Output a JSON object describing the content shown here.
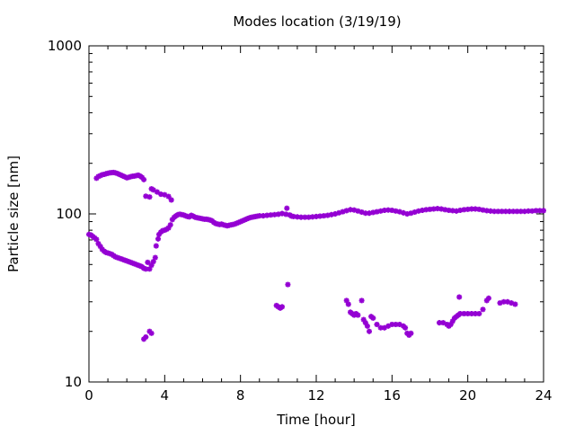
{
  "chart_data": {
    "type": "scatter",
    "title": "Modes location (3/19/19)",
    "xlabel": "Time [hour]",
    "ylabel": "Particle size [nm]",
    "xlim": [
      0,
      24
    ],
    "ylim": [
      10,
      1000
    ],
    "yscale": "log",
    "xticks": [
      "0",
      "4",
      "8",
      "12",
      "16",
      "20",
      "24"
    ],
    "yticks": [
      "10",
      "100",
      "1000"
    ],
    "grid": false,
    "legend": "none",
    "marker_color": "#9400d3",
    "series": [
      {
        "values": [
          [
            0.0,
            75.5
          ],
          [
            0.1,
            75.0
          ],
          [
            0.2,
            73.5
          ],
          [
            0.3,
            72.0
          ],
          [
            0.4,
            70.5
          ],
          [
            0.5,
            66.5
          ],
          [
            0.6,
            64.0
          ],
          [
            0.7,
            61.5
          ],
          [
            0.8,
            60.0
          ],
          [
            0.9,
            59.0
          ],
          [
            1.0,
            58.5
          ],
          [
            1.1,
            58.0
          ],
          [
            1.2,
            57.5
          ],
          [
            1.3,
            56.5
          ],
          [
            1.4,
            55.5
          ],
          [
            1.5,
            55.0
          ],
          [
            1.6,
            54.5
          ],
          [
            1.7,
            54.0
          ],
          [
            1.8,
            53.5
          ],
          [
            1.9,
            53.0
          ],
          [
            2.0,
            52.5
          ],
          [
            2.1,
            52.0
          ],
          [
            2.2,
            51.5
          ],
          [
            2.3,
            51.0
          ],
          [
            2.4,
            50.5
          ],
          [
            2.5,
            50.0
          ],
          [
            2.6,
            49.5
          ],
          [
            2.7,
            49.0
          ],
          [
            2.8,
            48.5
          ],
          [
            2.9,
            47.5
          ],
          [
            3.0,
            47.0
          ],
          [
            3.1,
            51.5
          ],
          [
            3.2,
            47.0
          ],
          [
            3.3,
            49.5
          ],
          [
            3.4,
            52.0
          ],
          [
            3.5,
            55.0
          ],
          [
            3.55,
            64.5
          ],
          [
            3.65,
            71.0
          ],
          [
            3.7,
            75.5
          ],
          [
            3.8,
            78.0
          ],
          [
            3.9,
            79.5
          ],
          [
            4.0,
            80.0
          ],
          [
            4.1,
            81.0
          ],
          [
            4.2,
            82.5
          ],
          [
            4.3,
            86.0
          ],
          [
            4.4,
            92.5
          ],
          [
            4.5,
            95.5
          ],
          [
            4.6,
            97.5
          ],
          [
            4.7,
            99.0
          ],
          [
            4.8,
            99.5
          ],
          [
            4.9,
            99.0
          ],
          [
            5.0,
            98.5
          ],
          [
            5.1,
            97.5
          ],
          [
            5.2,
            96.5
          ],
          [
            5.3,
            96.0
          ],
          [
            5.4,
            98.0
          ],
          [
            5.5,
            97.0
          ],
          [
            5.6,
            95.5
          ],
          [
            5.7,
            95.0
          ],
          [
            5.8,
            94.5
          ],
          [
            5.9,
            94.0
          ],
          [
            6.0,
            93.5
          ],
          [
            6.1,
            93.0
          ],
          [
            6.2,
            93.0
          ],
          [
            6.3,
            92.5
          ],
          [
            6.4,
            92.0
          ],
          [
            6.5,
            91.0
          ],
          [
            6.6,
            89.0
          ],
          [
            6.7,
            87.5
          ],
          [
            6.8,
            87.0
          ],
          [
            6.9,
            86.5
          ],
          [
            7.0,
            87.0
          ],
          [
            7.1,
            86.0
          ],
          [
            7.2,
            85.5
          ],
          [
            7.3,
            85.0
          ],
          [
            7.4,
            85.5
          ],
          [
            7.5,
            86.0
          ],
          [
            7.6,
            86.5
          ],
          [
            7.7,
            87.0
          ],
          [
            7.8,
            88.0
          ],
          [
            7.9,
            89.0
          ],
          [
            8.0,
            90.0
          ],
          [
            8.1,
            91.0
          ],
          [
            8.2,
            92.0
          ],
          [
            8.3,
            93.0
          ],
          [
            8.4,
            94.0
          ],
          [
            8.5,
            95.0
          ],
          [
            8.6,
            95.5
          ],
          [
            8.7,
            96.0
          ],
          [
            8.8,
            96.5
          ],
          [
            8.9,
            97.0
          ],
          [
            9.0,
            97.5
          ],
          [
            9.2,
            97.5
          ],
          [
            9.4,
            98.0
          ],
          [
            9.6,
            98.5
          ],
          [
            9.8,
            99.0
          ],
          [
            10.0,
            99.5
          ],
          [
            10.2,
            100.5
          ],
          [
            10.4,
            99.5
          ],
          [
            10.6,
            98.5
          ],
          [
            10.7,
            97.0
          ],
          [
            10.8,
            96.5
          ],
          [
            11.0,
            96.0
          ],
          [
            11.2,
            95.5
          ],
          [
            11.4,
            95.5
          ],
          [
            11.6,
            95.5
          ],
          [
            11.8,
            96.0
          ],
          [
            12.0,
            96.5
          ],
          [
            12.2,
            97.0
          ],
          [
            12.4,
            97.5
          ],
          [
            12.6,
            98.0
          ],
          [
            12.8,
            99.0
          ],
          [
            13.0,
            100.0
          ],
          [
            13.2,
            101.5
          ],
          [
            13.4,
            103.0
          ],
          [
            13.6,
            104.5
          ],
          [
            13.8,
            106.0
          ],
          [
            14.0,
            105.5
          ],
          [
            14.2,
            104.0
          ],
          [
            14.4,
            102.5
          ],
          [
            14.6,
            101.0
          ],
          [
            14.8,
            101.0
          ],
          [
            15.0,
            102.0
          ],
          [
            15.2,
            103.0
          ],
          [
            15.4,
            104.0
          ],
          [
            15.6,
            105.0
          ],
          [
            15.8,
            105.5
          ],
          [
            16.0,
            105.0
          ],
          [
            16.2,
            104.0
          ],
          [
            16.4,
            103.0
          ],
          [
            16.6,
            101.5
          ],
          [
            16.8,
            100.0
          ],
          [
            17.0,
            101.0
          ],
          [
            17.2,
            102.5
          ],
          [
            17.4,
            104.0
          ],
          [
            17.6,
            105.0
          ],
          [
            17.8,
            106.0
          ],
          [
            18.0,
            106.5
          ],
          [
            18.2,
            107.0
          ],
          [
            18.4,
            107.5
          ],
          [
            18.6,
            107.0
          ],
          [
            18.8,
            106.0
          ],
          [
            19.0,
            105.0
          ],
          [
            19.2,
            104.5
          ],
          [
            19.4,
            104.0
          ],
          [
            19.6,
            105.0
          ],
          [
            19.8,
            106.0
          ],
          [
            20.0,
            106.5
          ],
          [
            20.2,
            107.0
          ],
          [
            20.4,
            107.0
          ],
          [
            20.6,
            106.5
          ],
          [
            20.8,
            105.5
          ],
          [
            21.0,
            104.5
          ],
          [
            21.2,
            104.0
          ],
          [
            21.4,
            103.5
          ],
          [
            21.6,
            103.5
          ],
          [
            21.8,
            103.5
          ],
          [
            22.0,
            103.5
          ],
          [
            22.2,
            103.5
          ],
          [
            22.4,
            103.5
          ],
          [
            22.6,
            103.5
          ],
          [
            22.8,
            103.5
          ],
          [
            23.0,
            103.5
          ],
          [
            23.2,
            104.0
          ],
          [
            23.4,
            104.0
          ],
          [
            23.6,
            104.5
          ],
          [
            23.8,
            104.5
          ],
          [
            24.0,
            104.5
          ],
          [
            0.4,
            163.0
          ],
          [
            0.5,
            167.0
          ],
          [
            0.6,
            169.0
          ],
          [
            0.7,
            171.0
          ],
          [
            0.8,
            172.0
          ],
          [
            0.9,
            173.5
          ],
          [
            1.0,
            174.5
          ],
          [
            1.1,
            175.5
          ],
          [
            1.2,
            176.0
          ],
          [
            1.3,
            176.5
          ],
          [
            1.4,
            175.5
          ],
          [
            1.5,
            174.0
          ],
          [
            1.6,
            172.0
          ],
          [
            1.7,
            170.0
          ],
          [
            1.8,
            168.0
          ],
          [
            1.9,
            166.0
          ],
          [
            2.0,
            164.0
          ],
          [
            2.1,
            165.0
          ],
          [
            2.2,
            166.5
          ],
          [
            2.3,
            167.5
          ],
          [
            2.4,
            168.0
          ],
          [
            2.5,
            169.0
          ],
          [
            2.6,
            170.0
          ],
          [
            2.7,
            168.0
          ],
          [
            2.8,
            165.0
          ],
          [
            2.9,
            160.0
          ],
          [
            3.0,
            127.5
          ],
          [
            3.2,
            126.0
          ],
          [
            3.3,
            141.0
          ],
          [
            3.4,
            139.0
          ],
          [
            3.6,
            135.0
          ],
          [
            3.8,
            131.0
          ],
          [
            4.0,
            130.0
          ],
          [
            4.2,
            127.0
          ],
          [
            4.35,
            121.0
          ],
          [
            2.9,
            18.0
          ],
          [
            3.0,
            18.5
          ],
          [
            3.2,
            20.0
          ],
          [
            3.3,
            19.5
          ],
          [
            9.9,
            28.5
          ],
          [
            10.0,
            28.0
          ],
          [
            10.1,
            27.5
          ],
          [
            10.2,
            28.0
          ],
          [
            10.45,
            108.0
          ],
          [
            10.5,
            38.0
          ],
          [
            13.6,
            30.5
          ],
          [
            13.7,
            29.0
          ],
          [
            13.8,
            26.0
          ],
          [
            13.9,
            25.5
          ],
          [
            14.0,
            25.0
          ],
          [
            14.1,
            25.5
          ],
          [
            14.2,
            25.0
          ],
          [
            14.4,
            30.5
          ],
          [
            14.5,
            23.5
          ],
          [
            14.6,
            22.5
          ],
          [
            14.7,
            21.5
          ],
          [
            14.8,
            20.0
          ],
          [
            14.9,
            24.5
          ],
          [
            15.0,
            24.0
          ],
          [
            15.2,
            22.0
          ],
          [
            15.4,
            21.0
          ],
          [
            15.6,
            21.0
          ],
          [
            15.8,
            21.5
          ],
          [
            16.0,
            22.0
          ],
          [
            16.2,
            22.0
          ],
          [
            16.4,
            22.0
          ],
          [
            16.6,
            21.5
          ],
          [
            16.7,
            21.0
          ],
          [
            16.8,
            19.5
          ],
          [
            16.9,
            19.0
          ],
          [
            17.0,
            19.5
          ],
          [
            18.5,
            22.5
          ],
          [
            18.7,
            22.5
          ],
          [
            18.9,
            22.0
          ],
          [
            19.0,
            21.5
          ],
          [
            19.1,
            22.0
          ],
          [
            19.2,
            23.0
          ],
          [
            19.3,
            24.0
          ],
          [
            19.4,
            24.5
          ],
          [
            19.5,
            25.0
          ],
          [
            19.6,
            25.5
          ],
          [
            19.55,
            32.0
          ],
          [
            19.8,
            25.5
          ],
          [
            20.0,
            25.5
          ],
          [
            20.2,
            25.5
          ],
          [
            20.4,
            25.5
          ],
          [
            20.6,
            25.5
          ],
          [
            20.8,
            27.0
          ],
          [
            21.0,
            30.5
          ],
          [
            21.1,
            31.5
          ],
          [
            21.7,
            29.5
          ],
          [
            21.9,
            30.0
          ],
          [
            22.1,
            30.0
          ],
          [
            22.3,
            29.5
          ],
          [
            22.5,
            29.0
          ]
        ]
      }
    ]
  }
}
